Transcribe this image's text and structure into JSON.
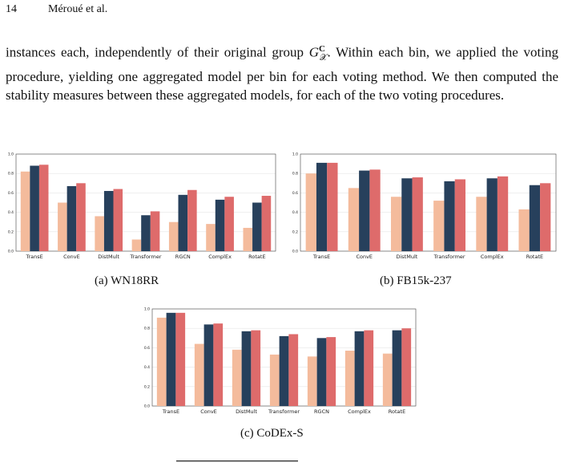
{
  "header": {
    "page_number": "14",
    "authors": "Méroué et al."
  },
  "paragraph": {
    "before": "instances each, independently of their original group ",
    "math_base": "G",
    "math_sup": "C",
    "math_sub": "𝒳",
    "after": ". Within each bin, we applied the voting procedure, yielding one aggregated model per bin for each voting method. We then computed the stability measures between these aggregated models, for each of the two voting procedures."
  },
  "captions": [
    "(a) WN18RR",
    "(b) FB15k-237",
    "(c) CoDEx-S"
  ],
  "chart_data": [
    {
      "type": "bar",
      "categories": [
        "TransE",
        "ConvE",
        "DistMult",
        "Transformer",
        "RGCN",
        "ComplEx",
        "RotatE"
      ],
      "series": [
        {
          "color": "#f4bb9c",
          "values": [
            0.82,
            0.5,
            0.36,
            0.12,
            0.3,
            0.28,
            0.24
          ]
        },
        {
          "color": "#27405c",
          "values": [
            0.88,
            0.67,
            0.62,
            0.37,
            0.58,
            0.53,
            0.5
          ]
        },
        {
          "color": "#de6b6b",
          "values": [
            0.89,
            0.7,
            0.64,
            0.41,
            0.63,
            0.56,
            0.57
          ]
        }
      ],
      "ylim": [
        0,
        1
      ],
      "yticks": [
        {
          "value": 0,
          "label": "0.0"
        },
        0.2,
        0.4,
        0.6,
        0.8,
        {
          "value": 1,
          "label": "1.0"
        }
      ],
      "grid": true
    },
    {
      "type": "bar",
      "categories": [
        "TransE",
        "ConvE",
        "DistMult",
        "Transformer",
        "ComplEx",
        "RotatE"
      ],
      "series": [
        {
          "color": "#f4bb9c",
          "values": [
            0.8,
            0.65,
            0.56,
            0.52,
            0.56,
            0.43
          ]
        },
        {
          "color": "#27405c",
          "values": [
            0.91,
            0.83,
            0.75,
            0.72,
            0.75,
            0.68
          ]
        },
        {
          "color": "#de6b6b",
          "values": [
            0.91,
            0.84,
            0.76,
            0.74,
            0.77,
            0.7
          ]
        }
      ],
      "ylim": [
        0,
        1
      ],
      "yticks": [
        {
          "value": 0,
          "label": "0.0"
        },
        0.2,
        0.4,
        0.6,
        0.8,
        {
          "value": 1,
          "label": "1.0"
        }
      ],
      "grid": true
    },
    {
      "type": "bar",
      "categories": [
        "TransE",
        "ConvE",
        "DistMult",
        "Transformer",
        "RGCN",
        "ComplEx",
        "RotatE"
      ],
      "series": [
        {
          "color": "#f4bb9c",
          "values": [
            0.91,
            0.64,
            0.58,
            0.53,
            0.51,
            0.57,
            0.54
          ]
        },
        {
          "color": "#27405c",
          "values": [
            0.96,
            0.84,
            0.77,
            0.72,
            0.7,
            0.77,
            0.78
          ]
        },
        {
          "color": "#de6b6b",
          "values": [
            0.96,
            0.85,
            0.78,
            0.74,
            0.71,
            0.78,
            0.8
          ]
        }
      ],
      "ylim": [
        0,
        1
      ],
      "yticks": [
        {
          "value": 0,
          "label": "0.0"
        },
        0.2,
        0.4,
        0.6,
        0.8,
        {
          "value": 1,
          "label": "1.0"
        }
      ],
      "grid": true
    }
  ]
}
